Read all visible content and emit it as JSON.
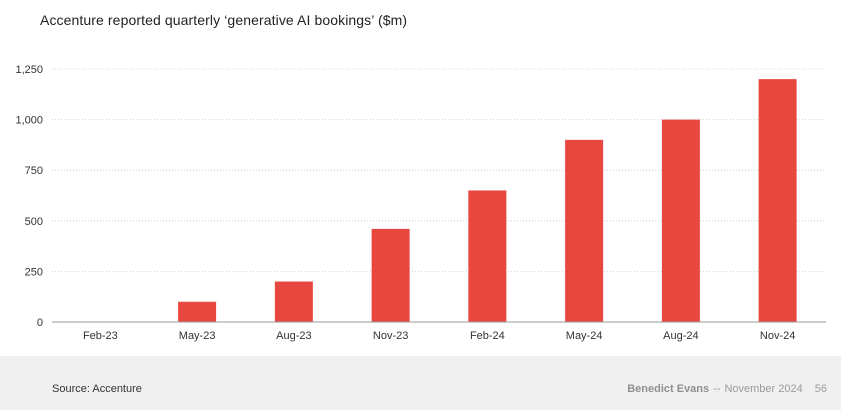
{
  "chart_data": {
    "type": "bar",
    "title": "Accenture reported quarterly ‘generative AI bookings’ ($m)",
    "categories": [
      "Feb-23",
      "May-23",
      "Aug-23",
      "Nov-23",
      "Feb-24",
      "May-24",
      "Aug-24",
      "Nov-24"
    ],
    "values": [
      0,
      100,
      200,
      460,
      650,
      900,
      1000,
      1200
    ],
    "ylim": [
      0,
      1250
    ],
    "yticks": [
      0,
      250,
      500,
      750,
      1000,
      1250
    ],
    "ytick_labels": [
      "0",
      "250",
      "500",
      "750",
      "1,000",
      "1,250"
    ],
    "grid": true,
    "bar_color": "#e8473f"
  },
  "footer": {
    "source": "Source: Accenture",
    "author": "Benedict Evans",
    "separator": "--",
    "date": "November 2024",
    "page_number": "56"
  }
}
